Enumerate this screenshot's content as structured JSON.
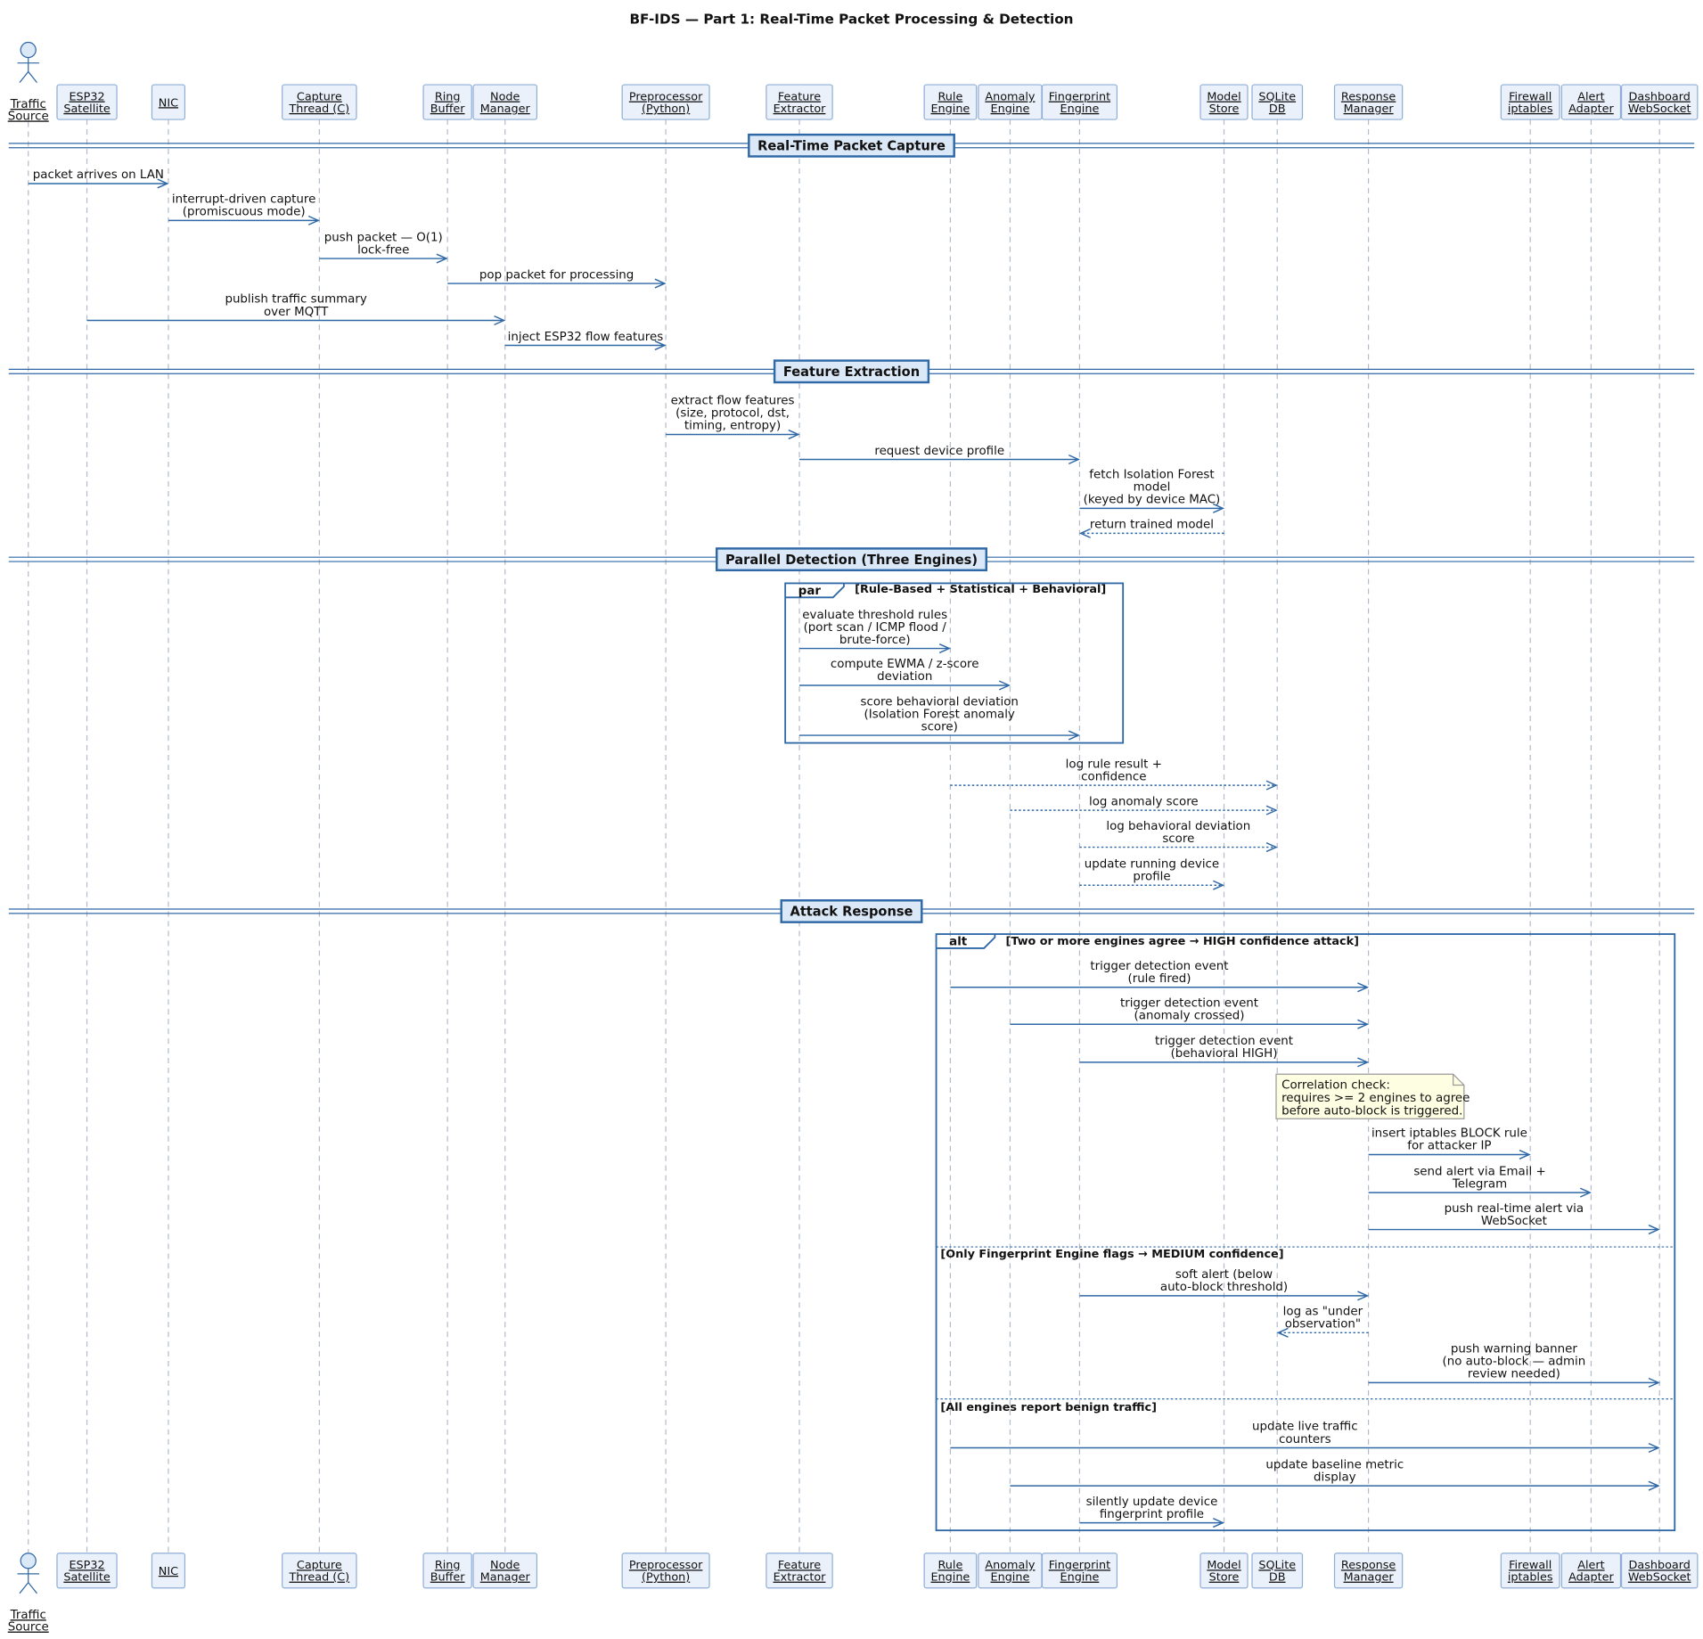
{
  "title": "BF-IDS — Part 1: Real-Time Packet Processing & Detection",
  "participants": [
    {
      "lines": [
        "Traffic",
        "Source"
      ]
    },
    {
      "lines": [
        "ESP32",
        "Satellite"
      ]
    },
    {
      "lines": [
        "NIC"
      ]
    },
    {
      "lines": [
        "Capture",
        "Thread (C)"
      ]
    },
    {
      "lines": [
        "Ring",
        "Buffer"
      ]
    },
    {
      "lines": [
        "Node",
        "Manager"
      ]
    },
    {
      "lines": [
        "Preprocessor",
        "(Python)"
      ]
    },
    {
      "lines": [
        "Feature",
        "Extractor"
      ]
    },
    {
      "lines": [
        "Rule",
        "Engine"
      ]
    },
    {
      "lines": [
        "Anomaly",
        "Engine"
      ]
    },
    {
      "lines": [
        "Fingerprint",
        "Engine"
      ]
    },
    {
      "lines": [
        "Model",
        "Store"
      ]
    },
    {
      "lines": [
        "SQLite",
        "DB"
      ]
    },
    {
      "lines": [
        "Response",
        "Manager"
      ]
    },
    {
      "lines": [
        "Firewall",
        "iptables"
      ]
    },
    {
      "lines": [
        "Alert",
        "Adapter"
      ]
    },
    {
      "lines": [
        "Dashboard",
        "WebSocket"
      ]
    }
  ],
  "sections": [
    "Real-Time Packet Capture",
    "Feature Extraction",
    "Parallel Detection  (Three Engines)",
    "Attack Response"
  ],
  "fragments": [
    {
      "operator": "par",
      "conditions": [
        "[Rule-Based  +  Statistical  +  Behavioral]"
      ]
    },
    {
      "operator": "alt",
      "conditions": [
        "[Two or more engines agree → HIGH confidence attack]",
        "[Only Fingerprint Engine flags → MEDIUM confidence]",
        "[All engines report benign traffic]"
      ]
    }
  ],
  "messages": [
    {
      "lines": [
        "packet arrives on LAN"
      ]
    },
    {
      "lines": [
        "interrupt-driven capture",
        "(promiscuous mode)"
      ]
    },
    {
      "lines": [
        "push packet — O(1)",
        "lock-free"
      ]
    },
    {
      "lines": [
        "pop packet for processing"
      ]
    },
    {
      "lines": [
        "publish traffic summary",
        "over MQTT"
      ]
    },
    {
      "lines": [
        "inject ESP32 flow features"
      ]
    },
    {
      "lines": [
        "extract flow features",
        "(size, protocol, dst,",
        "timing, entropy)"
      ]
    },
    {
      "lines": [
        "request device profile"
      ]
    },
    {
      "lines": [
        "fetch Isolation Forest",
        "model",
        "(keyed by device MAC)"
      ]
    },
    {
      "lines": [
        "return trained model"
      ]
    },
    {
      "lines": [
        "evaluate threshold rules",
        "(port scan / ICMP flood /",
        "brute-force)"
      ]
    },
    {
      "lines": [
        "compute EWMA / z-score",
        "deviation"
      ]
    },
    {
      "lines": [
        "score behavioral deviation",
        "(Isolation Forest anomaly",
        "score)"
      ]
    },
    {
      "lines": [
        "log rule result +",
        "confidence"
      ]
    },
    {
      "lines": [
        "log anomaly score"
      ]
    },
    {
      "lines": [
        "log behavioral deviation",
        "score"
      ]
    },
    {
      "lines": [
        "update running device",
        "profile"
      ]
    },
    {
      "lines": [
        "trigger detection event",
        "(rule fired)"
      ]
    },
    {
      "lines": [
        "trigger detection event",
        "(anomaly crossed)"
      ]
    },
    {
      "lines": [
        "trigger detection event",
        "(behavioral HIGH)"
      ]
    },
    {
      "lines": [
        "insert iptables BLOCK rule",
        "for attacker IP"
      ]
    },
    {
      "lines": [
        "send alert via Email +",
        "Telegram"
      ]
    },
    {
      "lines": [
        "push real-time alert via",
        "WebSocket"
      ]
    },
    {
      "lines": [
        "soft alert (below",
        "auto-block threshold)"
      ]
    },
    {
      "lines": [
        "log as \"under",
        "observation\""
      ]
    },
    {
      "lines": [
        "push warning banner",
        "(no auto-block — admin",
        "review needed)"
      ]
    },
    {
      "lines": [
        "update live traffic",
        "counters"
      ]
    },
    {
      "lines": [
        "update baseline metric",
        "display"
      ]
    },
    {
      "lines": [
        "silently update device",
        "fingerprint profile"
      ]
    }
  ],
  "note": {
    "lines": [
      "Correlation check:",
      "requires >= 2 engines to agree",
      "before auto-block is triggered."
    ]
  }
}
